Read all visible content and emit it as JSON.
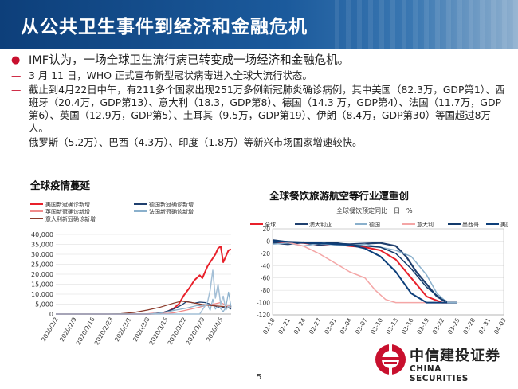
{
  "title": "从公共卫生事件到经济和金融危机",
  "bullets": {
    "main": "IMF认为，一场全球卫生流行病已转变成一场经济和金融危机。",
    "sub": [
      "3 月 11 日，WHO 正式宣布新型冠状病毒进入全球大流行状态。",
      "截止到4月22日中午，有211多个国家出现251万多例新冠肺炎确诊病例，其中美国（82.3万，GDP第1）、西班牙（20.4万，GDP第13）、意大利（18.3，GDP第8）、德国（14.3 万，GDP第4）、法国（11.7万，GDP第6）、英国（12.9万，GDP第5）、土耳其（9.5万，GDP第19）、伊朗（8.4万，GDP第30）等国超过8万人。",
      "俄罗斯（5.2万）、巴西（4.3万）、印度（1.8万）等新兴市场国家增速较快。"
    ]
  },
  "charts": {
    "left_title": "全球疫情蔓延",
    "right_title": "全球餐饮旅游航空等行业遭重创",
    "right_subtitle": "全球餐饮预定同比　日　%"
  },
  "colors": {
    "brand_blue": "#0d3f7a",
    "accent_red": "#c8102e"
  },
  "page_number": "5",
  "logo": {
    "cn": "中信建投证券",
    "en": "CHINA SECURITIES",
    "icon": "citic-logo-icon"
  },
  "chart_data": [
    {
      "type": "line",
      "title": "全球疫情蔓延",
      "categories": [
        "2020/2/2",
        "2020/2/9",
        "2020/2/16",
        "2020/2/23",
        "2020/3/1",
        "2020/3/8",
        "2020/3/15",
        "2020/3/22",
        "2020/3/29",
        "2020/4/5"
      ],
      "x_start": "2020/2/2",
      "x_end": "2020/4/9",
      "ylim": [
        0,
        40000
      ],
      "yticks": [
        "0",
        "5,000",
        "10,000",
        "15,000",
        "20,000",
        "25,000",
        "30,000",
        "35,000",
        "40,000"
      ],
      "grid": true,
      "legend_position": "top-left",
      "series": [
        {
          "name": "美国新冠确诊新增",
          "color": "#e8202a",
          "width": 2,
          "values": [
            [
              0,
              0
            ],
            [
              35,
              0
            ],
            [
              38,
              200
            ],
            [
              41,
              700
            ],
            [
              43,
              1500
            ],
            [
              45,
              2800
            ],
            [
              47,
              5000
            ],
            [
              49,
              9500
            ],
            [
              51,
              13000
            ],
            [
              53,
              17000
            ],
            [
              55,
              19500
            ],
            [
              56,
              18000
            ],
            [
              58,
              24000
            ],
            [
              60,
              28000
            ],
            [
              61,
              30000
            ],
            [
              62,
              33000
            ],
            [
              63,
              34000
            ],
            [
              64,
              26000
            ],
            [
              65,
              29000
            ],
            [
              66,
              32000
            ],
            [
              67,
              32500
            ]
          ]
        },
        {
          "name": "德国新冠确诊新增",
          "color": "#1f3f6e",
          "width": 1.3,
          "values": [
            [
              0,
              0
            ],
            [
              36,
              0
            ],
            [
              41,
              800
            ],
            [
              45,
              2500
            ],
            [
              48,
              4500
            ],
            [
              50,
              6300
            ],
            [
              53,
              5500
            ],
            [
              55,
              6000
            ],
            [
              57,
              5800
            ],
            [
              59,
              5000
            ],
            [
              61,
              4000
            ],
            [
              63,
              3000
            ],
            [
              65,
              3800
            ],
            [
              67,
              2500
            ]
          ]
        },
        {
          "name": "英国新冠确诊新增",
          "color": "#f08a8a",
          "width": 1.2,
          "values": [
            [
              0,
              0
            ],
            [
              40,
              0
            ],
            [
              45,
              600
            ],
            [
              50,
              2000
            ],
            [
              55,
              3500
            ],
            [
              58,
              4500
            ],
            [
              61,
              5200
            ],
            [
              63,
              5800
            ],
            [
              65,
              4500
            ],
            [
              67,
              4000
            ]
          ]
        },
        {
          "name": "法国新冠确诊新增",
          "color": "#8ab0cc",
          "width": 1.2,
          "values": [
            [
              0,
              0
            ],
            [
              36,
              0
            ],
            [
              41,
              700
            ],
            [
              45,
              1800
            ],
            [
              50,
              3000
            ],
            [
              54,
              4300
            ],
            [
              56,
              4000
            ],
            [
              58,
              4900
            ],
            [
              59,
              1800
            ],
            [
              60,
              7500
            ],
            [
              61,
              2500
            ],
            [
              62,
              4200
            ],
            [
              64,
              1200
            ],
            [
              65,
              3500
            ],
            [
              66,
              11000
            ],
            [
              67,
              3500
            ]
          ]
        },
        {
          "name": "意大利新冠确诊新增",
          "color": "#8b3a2a",
          "width": 1.2,
          "values": [
            [
              0,
              0
            ],
            [
              20,
              0
            ],
            [
              25,
              200
            ],
            [
              30,
              800
            ],
            [
              35,
              2000
            ],
            [
              40,
              3500
            ],
            [
              45,
              5500
            ],
            [
              48,
              6500
            ],
            [
              52,
              5800
            ],
            [
              56,
              4800
            ],
            [
              60,
              4200
            ],
            [
              64,
              3800
            ],
            [
              67,
              3500
            ]
          ]
        },
        {
          "name": "",
          "color": "#a4bfd6",
          "width": 1.5,
          "values": [
            [
              0,
              0
            ],
            [
              55,
              0
            ],
            [
              58,
              6000
            ],
            [
              59,
              12000
            ],
            [
              60,
              22000
            ],
            [
              61,
              8000
            ],
            [
              62,
              15000
            ],
            [
              63,
              5000
            ],
            [
              64,
              9000
            ],
            [
              65,
              2000
            ],
            [
              66,
              4000
            ],
            [
              67,
              3000
            ]
          ]
        }
      ]
    },
    {
      "type": "line",
      "title": "全球餐饮预定同比　日　%",
      "categories": [
        "02-18",
        "02-21",
        "02-24",
        "02-27",
        "03-01",
        "03-04",
        "03-07",
        "03-10",
        "03-13",
        "03-16",
        "03-19",
        "03-22",
        "03-25",
        "03-28",
        "03-31",
        "04-03"
      ],
      "ylim": [
        -120,
        20
      ],
      "yticks": [
        "-120",
        "-100",
        "-80",
        "-60",
        "-40",
        "-20",
        "0",
        "20"
      ],
      "grid": true,
      "legend_position": "top",
      "series": [
        {
          "name": "全球",
          "color": "#e8202a",
          "width": 2,
          "values": [
            [
              0,
              -1
            ],
            [
              3,
              -2
            ],
            [
              6,
              -3
            ],
            [
              9,
              -6
            ],
            [
              12,
              -5
            ],
            [
              15,
              -8
            ],
            [
              18,
              -10
            ],
            [
              21,
              -15
            ],
            [
              24,
              -30
            ],
            [
              27,
              -60
            ],
            [
              30,
              -90
            ],
            [
              33,
              -100
            ],
            [
              34,
              -100
            ]
          ]
        },
        {
          "name": "澳大利亚",
          "color": "#1f3f6e",
          "width": 2.2,
          "values": [
            [
              0,
              -3
            ],
            [
              3,
              -5
            ],
            [
              6,
              -2
            ],
            [
              9,
              -6
            ],
            [
              12,
              -4
            ],
            [
              15,
              -5
            ],
            [
              18,
              -4
            ],
            [
              21,
              -3
            ],
            [
              24,
              -8
            ],
            [
              26,
              -25
            ],
            [
              28,
              -50
            ],
            [
              30,
              -70
            ],
            [
              32,
              -90
            ],
            [
              34,
              -100
            ],
            [
              36,
              -100
            ]
          ]
        },
        {
          "name": "德国",
          "color": "#8ab0cc",
          "width": 1.5,
          "values": [
            [
              0,
              -5
            ],
            [
              3,
              -3
            ],
            [
              6,
              -8
            ],
            [
              9,
              -4
            ],
            [
              12,
              -6
            ],
            [
              15,
              -7
            ],
            [
              18,
              -5
            ],
            [
              21,
              -10
            ],
            [
              24,
              -15
            ],
            [
              27,
              -25
            ],
            [
              30,
              -55
            ],
            [
              32,
              -85
            ],
            [
              34,
              -100
            ],
            [
              36,
              -100
            ]
          ]
        },
        {
          "name": "意大利",
          "color": "#f4a6a6",
          "width": 1.5,
          "values": [
            [
              0,
              2
            ],
            [
              3,
              -2
            ],
            [
              6,
              -8
            ],
            [
              9,
              -20
            ],
            [
              12,
              -35
            ],
            [
              15,
              -50
            ],
            [
              18,
              -60
            ],
            [
              20,
              -80
            ],
            [
              22,
              -95
            ],
            [
              24,
              -100
            ],
            [
              34,
              -100
            ]
          ]
        },
        {
          "name": "墨西哥",
          "color": "#123a6b",
          "width": 1.5,
          "values": [
            [
              0,
              2
            ],
            [
              3,
              -1
            ],
            [
              6,
              -3
            ],
            [
              9,
              -4
            ],
            [
              12,
              -2
            ],
            [
              15,
              -6
            ],
            [
              18,
              -8
            ],
            [
              21,
              -10
            ],
            [
              24,
              -20
            ],
            [
              27,
              -45
            ],
            [
              30,
              -75
            ],
            [
              33,
              -95
            ],
            [
              34,
              -98
            ]
          ]
        },
        {
          "name": "美国",
          "color": "#0d3f7a",
          "width": 2,
          "values": [
            [
              0,
              0
            ],
            [
              3,
              -1
            ],
            [
              6,
              -2
            ],
            [
              9,
              -3
            ],
            [
              12,
              -5
            ],
            [
              15,
              -6
            ],
            [
              18,
              -12
            ],
            [
              21,
              -25
            ],
            [
              24,
              -50
            ],
            [
              27,
              -85
            ],
            [
              30,
              -100
            ],
            [
              34,
              -100
            ]
          ]
        }
      ]
    }
  ]
}
